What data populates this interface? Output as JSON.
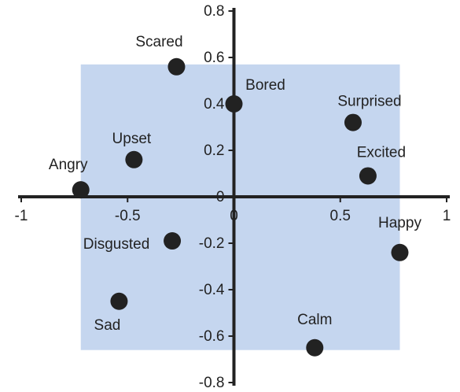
{
  "chart_data": {
    "type": "scatter",
    "labels": [
      "Scared",
      "Bored",
      "Surprised",
      "Upset",
      "Excited",
      "Angry",
      "Disgusted",
      "Happy",
      "Sad",
      "Calm"
    ],
    "x": [
      -0.27,
      0,
      0.56,
      -0.47,
      0.63,
      -0.72,
      -0.29,
      0.78,
      -0.54,
      0.38
    ],
    "values": [
      0.56,
      0.4,
      0.32,
      0.16,
      0.09,
      0.03,
      -0.19,
      -0.24,
      -0.45,
      -0.65
    ],
    "color": "#222222",
    "region": {
      "x": [
        -0.72,
        0.78
      ],
      "y": [
        -0.66,
        0.57
      ],
      "color": "#c5d6ef"
    },
    "xlim": [
      -1,
      1
    ],
    "xticks": [
      -1,
      -0.5,
      0,
      0.5,
      1
    ],
    "ylim": [
      -0.8,
      0.8
    ],
    "yticks": [
      0.8,
      0.6,
      0.4,
      0.2,
      0,
      -0.2,
      -0.4,
      -0.6,
      -0.8
    ]
  }
}
